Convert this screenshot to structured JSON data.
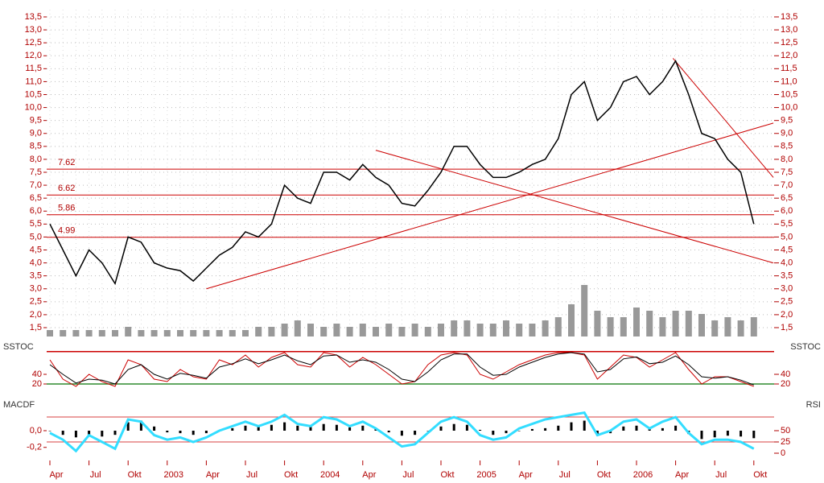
{
  "chart_data": [
    {
      "type": "line",
      "categories": [
        "Apr",
        null,
        null,
        "Jul",
        null,
        null,
        "Okt",
        null,
        null,
        "2003",
        null,
        null,
        "Apr",
        null,
        null,
        "Jul",
        null,
        null,
        "Okt",
        null,
        null,
        "2004",
        null,
        null,
        "Apr",
        null,
        null,
        "Jul",
        null,
        null,
        "Okt",
        null,
        null,
        "2005",
        null,
        null,
        "Apr",
        null,
        null,
        "Jul",
        null,
        null,
        "Okt",
        null,
        null,
        "2006",
        null,
        null,
        "Apr",
        null,
        null,
        "Jul",
        null,
        null,
        "Okt"
      ],
      "series": [
        {
          "color": "#000000",
          "values": [
            5.5,
            4.5,
            3.5,
            4.5,
            4.0,
            3.2,
            5.0,
            4.8,
            4.0,
            3.8,
            3.7,
            3.3,
            3.8,
            4.3,
            4.6,
            5.2,
            5.0,
            5.5,
            7.0,
            6.5,
            6.3,
            7.5,
            7.5,
            7.2,
            7.8,
            7.3,
            7.0,
            6.3,
            6.2,
            6.8,
            7.5,
            8.5,
            8.5,
            7.8,
            7.3,
            7.3,
            7.5,
            7.8,
            8.0,
            8.8,
            10.5,
            11.0,
            9.5,
            10.0,
            11.0,
            11.2,
            10.5,
            11.0,
            11.8,
            10.5,
            9.0,
            8.8,
            8.0,
            7.5,
            5.5
          ]
        }
      ],
      "volume": {
        "color": "#999999",
        "values": [
          1,
          1,
          1,
          1,
          1,
          1,
          1.5,
          1,
          1,
          1,
          1,
          1,
          1,
          1,
          1,
          1,
          1.5,
          1.5,
          2,
          2.5,
          2,
          1.5,
          2,
          1.5,
          2,
          1.5,
          2,
          1.5,
          2,
          1.5,
          2,
          2.5,
          2.5,
          2,
          2,
          2.5,
          2,
          2,
          2.5,
          3,
          5,
          8,
          4,
          3,
          3,
          4.5,
          4,
          3,
          4,
          4,
          3.5,
          2.5,
          3,
          2.5,
          3
        ]
      },
      "levels": [
        7.62,
        6.62,
        5.86,
        4.99
      ],
      "level_color": "#cc0000",
      "trendlines": [
        [
          [
            12,
            3.0
          ],
          [
            55.5,
            9.4
          ]
        ],
        [
          [
            25,
            8.35
          ],
          [
            55.5,
            4.0
          ]
        ],
        [
          [
            47.8,
            11.9
          ],
          [
            55.5,
            7.3
          ]
        ]
      ],
      "ylim": [
        1.5,
        13.5
      ],
      "yticks": [
        {
          "value": 1.5,
          "label": "1,5"
        },
        {
          "value": 2,
          "label": "2,0"
        },
        {
          "value": 2.5,
          "label": "2,5"
        },
        {
          "value": 3,
          "label": "3,0"
        },
        {
          "value": 3.5,
          "label": "3,5"
        },
        {
          "value": 4,
          "label": "4,0"
        },
        {
          "value": 4.5,
          "label": "4,5"
        },
        {
          "value": 5,
          "label": "5,0"
        },
        {
          "value": 5.5,
          "label": "5,5"
        },
        {
          "value": 6,
          "label": "6,0"
        },
        {
          "value": 6.5,
          "label": "6,5"
        },
        {
          "value": 7,
          "label": "7,0"
        },
        {
          "value": 7.5,
          "label": "7,5"
        },
        {
          "value": 8,
          "label": "8,0"
        },
        {
          "value": 8.5,
          "label": "8,5"
        },
        {
          "value": 9,
          "label": "9,0"
        },
        {
          "value": 9.5,
          "label": "9,5"
        },
        {
          "value": 10,
          "label": "10,0"
        },
        {
          "value": 10.5,
          "label": "10,5"
        },
        {
          "value": 11,
          "label": "11,0"
        },
        {
          "value": 11.5,
          "label": "11,5"
        },
        {
          "value": 12,
          "label": "12,0"
        },
        {
          "value": 12.5,
          "label": "12,5"
        },
        {
          "value": 13,
          "label": "13,0"
        },
        {
          "value": 13.5,
          "label": "13,5"
        }
      ],
      "grid": true
    },
    {
      "type": "line",
      "title": "SSTOC",
      "series": [
        {
          "color": "#cc0000",
          "values": [
            70,
            30,
            15,
            40,
            25,
            15,
            70,
            60,
            30,
            25,
            50,
            35,
            30,
            70,
            60,
            80,
            55,
            75,
            85,
            60,
            55,
            85,
            80,
            55,
            75,
            60,
            40,
            20,
            25,
            60,
            80,
            85,
            80,
            40,
            30,
            45,
            60,
            70,
            80,
            85,
            85,
            80,
            30,
            55,
            80,
            75,
            55,
            70,
            85,
            50,
            20,
            35,
            35,
            25,
            15
          ]
        },
        {
          "color": "#000000",
          "values": [
            60,
            40,
            22,
            30,
            28,
            20,
            50,
            60,
            40,
            30,
            42,
            38,
            32,
            55,
            62,
            72,
            62,
            70,
            80,
            68,
            60,
            78,
            80,
            65,
            70,
            65,
            50,
            30,
            25,
            45,
            70,
            82,
            82,
            55,
            38,
            40,
            55,
            65,
            75,
            82,
            85,
            82,
            45,
            50,
            72,
            76,
            62,
            65,
            78,
            60,
            35,
            32,
            35,
            28,
            18
          ]
        }
      ],
      "levels": [
        {
          "value": 87,
          "color": "#cc0000"
        },
        {
          "value": 20,
          "color": "#2e8b2e"
        }
      ],
      "ylim": [
        10,
        95
      ],
      "yticks": [
        20,
        40
      ]
    },
    {
      "type": "bar",
      "title": "MACDF",
      "y2label": "RSI",
      "series": [
        {
          "color": "#000000",
          "values": [
            0,
            -0.05,
            -0.08,
            -0.05,
            -0.07,
            -0.05,
            0.1,
            0.12,
            0.05,
            -0.02,
            -0.03,
            -0.05,
            -0.03,
            0,
            0.03,
            0.06,
            0.05,
            0.07,
            0.1,
            0.06,
            0.05,
            0.08,
            0.07,
            0.04,
            0.06,
            0.02,
            -0.02,
            -0.06,
            -0.05,
            0,
            0.05,
            0.08,
            0.07,
            0.01,
            -0.05,
            -0.03,
            0,
            0.02,
            0.03,
            0.06,
            0.1,
            0.12,
            -0.06,
            -0.03,
            0.05,
            0.06,
            0.02,
            0.03,
            0.06,
            -0.04,
            -0.1,
            -0.08,
            -0.06,
            -0.07,
            -0.09
          ]
        },
        {
          "color": "#33ddff",
          "axis": "y2",
          "values": [
            45,
            30,
            5,
            40,
            25,
            10,
            75,
            70,
            40,
            30,
            35,
            25,
            35,
            50,
            60,
            70,
            60,
            70,
            85,
            65,
            60,
            80,
            75,
            60,
            70,
            55,
            35,
            15,
            20,
            45,
            70,
            80,
            70,
            40,
            30,
            35,
            55,
            65,
            75,
            80,
            85,
            90,
            40,
            50,
            70,
            75,
            55,
            70,
            80,
            45,
            20,
            30,
            30,
            25,
            10
          ]
        }
      ],
      "ylim": [
        -0.27,
        0.27
      ],
      "yticks": [
        {
          "value": 0,
          "label": "0,0"
        },
        {
          "value": -0.2,
          "label": "-0,2"
        }
      ],
      "y2lim": [
        0,
        100
      ],
      "y2ticks": [
        0,
        25,
        50
      ]
    }
  ]
}
